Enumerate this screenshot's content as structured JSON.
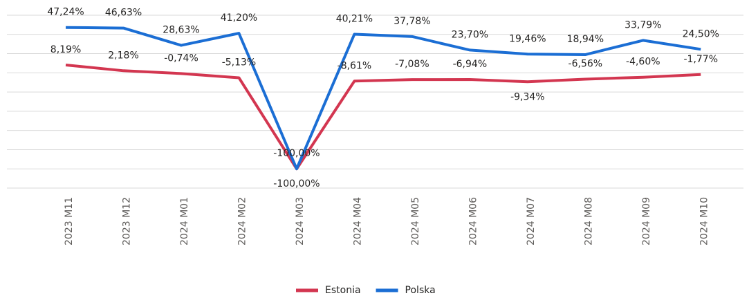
{
  "chart_data": {
    "type": "line",
    "categories": [
      "2023 M11",
      "2023 M12",
      "2024 M01",
      "2024 M02",
      "2024 M03",
      "2024 M04",
      "2024 M05",
      "2024 M06",
      "2024 M07",
      "2024 M08",
      "2024 M09",
      "2024 M10"
    ],
    "series": [
      {
        "name": "Estonia",
        "color": "#d33650",
        "values": [
          8.19,
          2.18,
          -0.74,
          -5.13,
          -100,
          -8.61,
          -7.08,
          -6.94,
          -9.34,
          -6.56,
          -4.6,
          -1.77
        ],
        "value_labels": [
          "8,19%",
          "2,18%",
          "-0,74%",
          "-5,13%",
          "-100,00%",
          "-8,61%",
          "-7,08%",
          "-6,94%",
          "-9,34%",
          "-6,56%",
          "-4,60%",
          "-1,77%"
        ]
      },
      {
        "name": "Polska",
        "color": "#1b6ed4",
        "values": [
          47.24,
          46.63,
          28.63,
          41.2,
          -100,
          40.21,
          37.78,
          23.7,
          19.46,
          18.94,
          33.79,
          24.5
        ],
        "value_labels": [
          "47,24%",
          "46,63%",
          "28,63%",
          "41,20%",
          "-100,00%",
          "40,21%",
          "37,78%",
          "23,70%",
          "19,46%",
          "18,94%",
          "33,79%",
          "24,50%"
        ]
      }
    ],
    "ylim": [
      -120,
      60
    ],
    "yticks": [
      -120,
      -100,
      -80,
      -60,
      -40,
      -20,
      0,
      20,
      40,
      60
    ],
    "grid": true,
    "legend": "bottom"
  }
}
